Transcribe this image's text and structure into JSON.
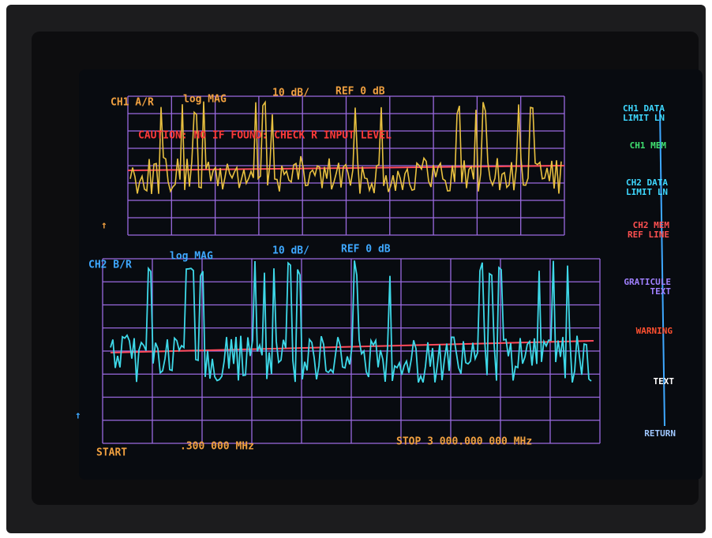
{
  "channel1": {
    "label": "CH1 A/R",
    "format": "log MAG",
    "scale": "10 dB/",
    "reference": "REF 0 dB"
  },
  "warning_message": "CAUTION: NO IF FOUND: CHECK R INPUT LEVEL",
  "channel2": {
    "label": "CH2 B/R",
    "format": "log MAG",
    "scale": "10 dB/",
    "reference": "REF 0 dB"
  },
  "footer": {
    "start_label": "START",
    "start_value": ".300 000 MHz",
    "stop": "STOP 3 000.000 000 MHz"
  },
  "softkeys": [
    {
      "lines": [
        "CH1 DATA",
        "LIMIT LN"
      ]
    },
    {
      "lines": [
        "CH1 MEM"
      ]
    },
    {
      "lines": [
        "CH2 DATA",
        "LIMIT LN"
      ]
    },
    {
      "lines": [
        "CH2 MEM",
        "REF LINE"
      ]
    },
    {
      "lines": [
        "GRATICULE",
        "TEXT"
      ]
    },
    {
      "lines": [
        "WARNING"
      ]
    },
    {
      "lines": [
        "TEXT"
      ]
    },
    {
      "lines": [
        "RETURN"
      ]
    }
  ]
}
